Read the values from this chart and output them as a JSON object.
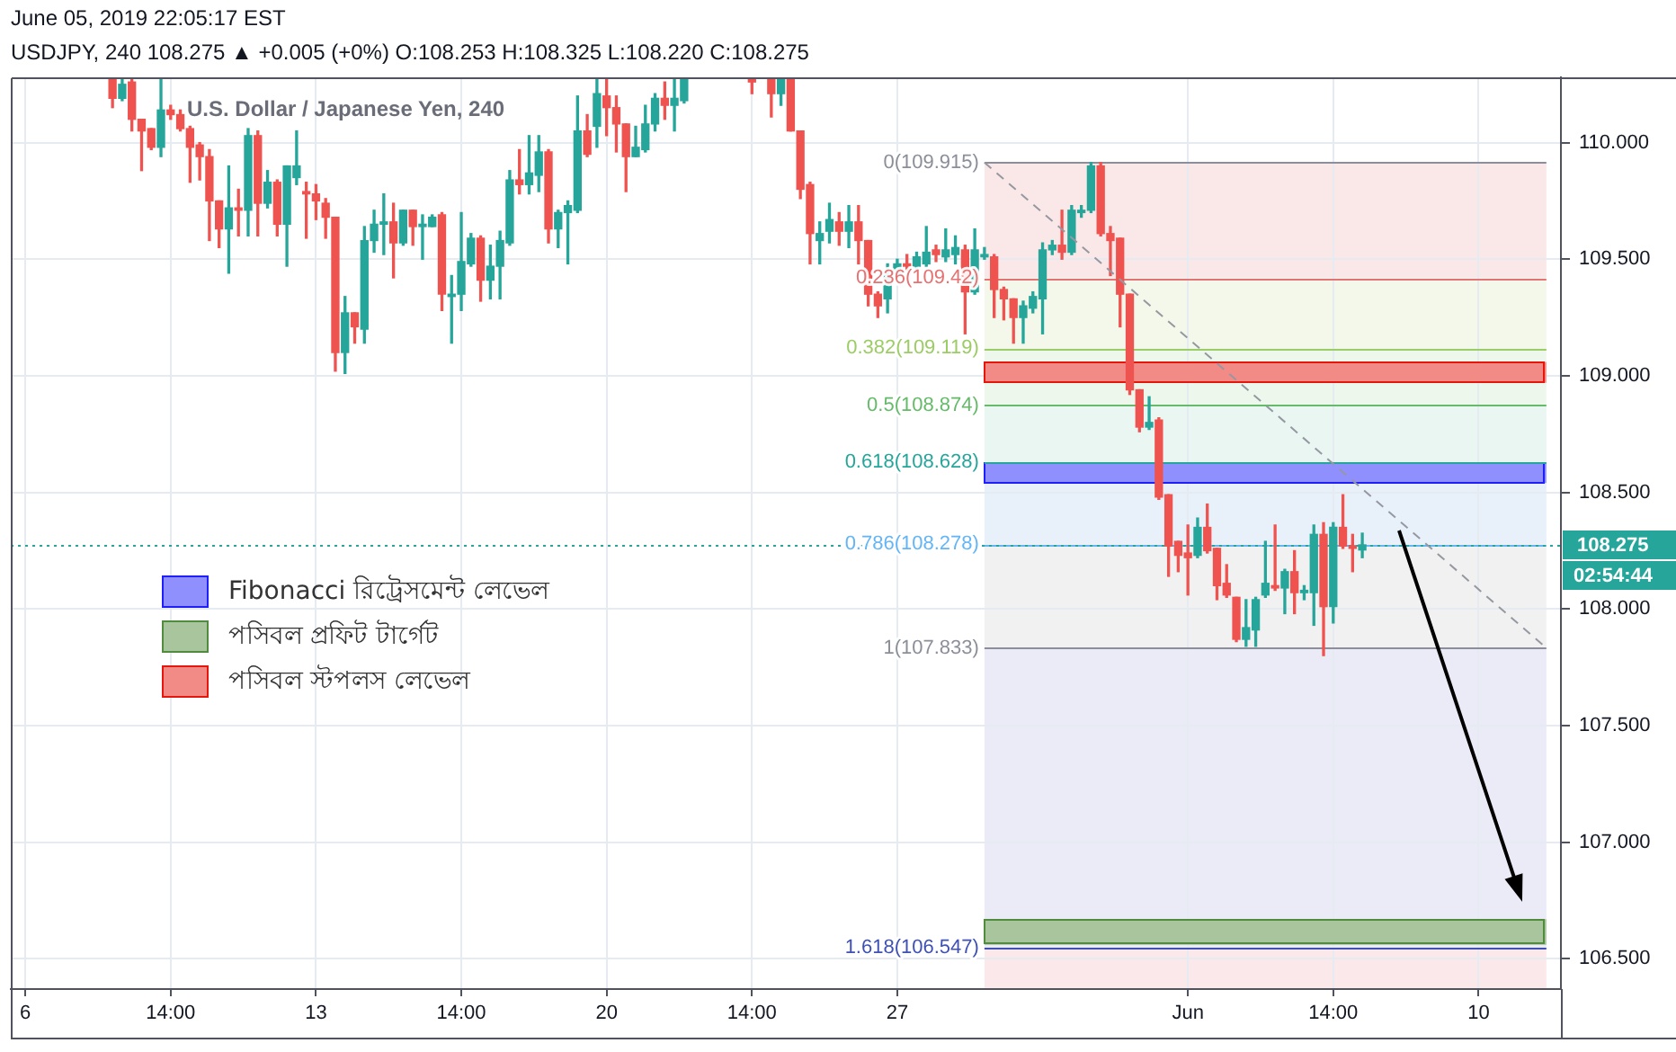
{
  "chart_data": {
    "type": "candlestick",
    "title": "U.S. Dollar / Japanese Yen, 240",
    "categories": [
      null,
      "6",
      null,
      null,
      null,
      null,
      null,
      null,
      null,
      null,
      null,
      null,
      null,
      null,
      null,
      null,
      "14:00",
      null,
      null,
      null,
      null,
      null,
      null,
      null,
      null,
      null,
      null,
      null,
      null,
      null,
      null,
      "13",
      null,
      null,
      null,
      null,
      null,
      null,
      null,
      null,
      null,
      null,
      null,
      null,
      null,
      null,
      "14:00",
      null,
      null,
      null,
      null,
      null,
      null,
      null,
      null,
      null,
      null,
      null,
      null,
      null,
      null,
      "20",
      null,
      null,
      null,
      null,
      null,
      null,
      null,
      null,
      null,
      null,
      null,
      null,
      null,
      null,
      "14:00",
      null,
      null,
      null,
      null,
      null,
      null,
      null,
      null,
      null,
      null,
      null,
      null,
      null,
      null,
      "27",
      null,
      null,
      null,
      null,
      null,
      null,
      null,
      null,
      null,
      null,
      null,
      null,
      null,
      null,
      null,
      null,
      null,
      null,
      null,
      null,
      null,
      null,
      null,
      null,
      null,
      null,
      null,
      null,
      null,
      "Jun",
      null,
      null,
      null,
      null,
      null,
      null,
      null,
      null,
      null,
      null,
      null,
      null,
      null,
      null,
      "14:00",
      null,
      null,
      null,
      null,
      null,
      null,
      null,
      null,
      null,
      null,
      null,
      null,
      null,
      null,
      "10",
      null,
      null,
      null,
      null,
      null,
      null,
      null,
      null
    ],
    "ohlc": [
      null,
      null,
      null,
      null,
      null,
      null,
      null,
      null,
      null,
      null,
      [
        110.27,
        110.27,
        110.15,
        110.19
      ],
      [
        110.19,
        110.27,
        110.18,
        110.25
      ],
      [
        110.26,
        110.27,
        110.05,
        110.1
      ],
      [
        110.1,
        110.1,
        109.88,
        110.05
      ],
      [
        110.06,
        110.06,
        109.97,
        109.98
      ],
      [
        109.98,
        110.27,
        109.94,
        110.14
      ],
      [
        110.14,
        110.16,
        110.1,
        110.12
      ],
      [
        110.12,
        110.14,
        110.05,
        110.06
      ],
      [
        110.06,
        110.07,
        109.83,
        109.98
      ],
      [
        109.99,
        110.0,
        109.84,
        109.94
      ],
      [
        109.94,
        109.97,
        109.58,
        109.75
      ],
      [
        109.75,
        109.75,
        109.55,
        109.63
      ],
      [
        109.63,
        109.9,
        109.44,
        109.72
      ],
      [
        109.72,
        109.8,
        109.6,
        109.71
      ],
      [
        109.71,
        110.06,
        109.6,
        110.03
      ],
      [
        110.03,
        110.05,
        109.6,
        109.74
      ],
      [
        109.74,
        109.88,
        109.72,
        109.83
      ],
      [
        109.83,
        109.84,
        109.6,
        109.65
      ],
      [
        109.65,
        109.9,
        109.47,
        109.9
      ],
      [
        109.85,
        110.05,
        109.82,
        109.9
      ],
      [
        109.79,
        109.83,
        109.59,
        109.78
      ],
      [
        109.78,
        109.82,
        109.67,
        109.75
      ],
      [
        109.74,
        109.76,
        109.59,
        109.68
      ],
      [
        109.68,
        109.68,
        109.02,
        109.1
      ],
      [
        109.1,
        109.34,
        109.01,
        109.27
      ],
      [
        109.27,
        109.27,
        109.14,
        109.21
      ],
      [
        109.2,
        109.64,
        109.14,
        109.58
      ],
      [
        109.58,
        109.71,
        109.53,
        109.65
      ],
      [
        109.65,
        109.78,
        109.52,
        109.66
      ],
      [
        109.66,
        109.74,
        109.42,
        109.57
      ],
      [
        109.57,
        109.71,
        109.56,
        109.71
      ],
      [
        109.71,
        109.71,
        109.56,
        109.64
      ],
      [
        109.64,
        109.69,
        109.5,
        109.65
      ],
      [
        109.64,
        109.69,
        109.64,
        109.68
      ],
      [
        109.69,
        109.7,
        109.28,
        109.35
      ],
      [
        109.34,
        109.43,
        109.14,
        109.35
      ],
      [
        109.35,
        109.7,
        109.28,
        109.49
      ],
      [
        109.48,
        109.61,
        109.47,
        109.59
      ],
      [
        109.59,
        109.6,
        109.32,
        109.41
      ],
      [
        109.41,
        109.56,
        109.33,
        109.47
      ],
      [
        109.47,
        109.62,
        109.33,
        109.58
      ],
      [
        109.57,
        109.88,
        109.56,
        109.84
      ],
      [
        109.84,
        109.97,
        109.78,
        109.82
      ],
      [
        109.82,
        110.03,
        109.78,
        109.87
      ],
      [
        109.86,
        110.03,
        109.79,
        109.96
      ],
      [
        109.96,
        109.97,
        109.57,
        109.63
      ],
      [
        109.63,
        109.71,
        109.55,
        109.7
      ],
      [
        109.7,
        109.75,
        109.48,
        109.73
      ],
      [
        109.71,
        110.2,
        109.7,
        110.05
      ],
      [
        110.05,
        110.12,
        109.94,
        109.95
      ],
      [
        110.07,
        110.27,
        109.98,
        110.21
      ],
      [
        110.2,
        110.27,
        110.03,
        110.15
      ],
      [
        110.15,
        110.2,
        109.96,
        110.08
      ],
      [
        110.08,
        110.08,
        109.79,
        109.94
      ],
      [
        109.94,
        110.07,
        109.94,
        109.98
      ],
      [
        109.97,
        110.16,
        109.96,
        110.08
      ],
      [
        110.08,
        110.21,
        110.05,
        110.19
      ],
      [
        110.19,
        110.26,
        110.1,
        110.16
      ],
      [
        110.16,
        110.27,
        110.05,
        110.19
      ],
      [
        110.18,
        110.27,
        110.17,
        110.27
      ],
      null,
      null,
      null,
      null,
      null,
      null,
      [
        110.27,
        110.27,
        110.21,
        110.26
      ],
      null,
      [
        110.27,
        110.27,
        110.11,
        110.21
      ],
      [
        110.21,
        110.27,
        110.16,
        110.27
      ],
      [
        110.27,
        110.27,
        110.05,
        110.05
      ],
      [
        110.05,
        110.05,
        109.76,
        109.8
      ],
      [
        109.82,
        109.83,
        109.48,
        109.61
      ],
      [
        109.58,
        109.66,
        109.48,
        109.61
      ],
      [
        109.62,
        109.74,
        109.57,
        109.67
      ],
      [
        109.66,
        109.7,
        109.56,
        109.62
      ],
      [
        109.62,
        109.73,
        109.55,
        109.66
      ],
      [
        109.66,
        109.73,
        109.48,
        109.58
      ],
      [
        109.58,
        109.58,
        109.3,
        109.35
      ],
      [
        109.35,
        109.36,
        109.25,
        109.3
      ],
      [
        109.33,
        109.48,
        109.27,
        109.43
      ],
      [
        109.43,
        109.5,
        109.42,
        109.48
      ],
      [
        109.48,
        109.52,
        109.45,
        109.47
      ],
      [
        109.47,
        109.53,
        109.45,
        109.51
      ],
      [
        109.48,
        109.64,
        109.47,
        109.53
      ],
      [
        109.54,
        109.56,
        109.49,
        109.52
      ],
      [
        109.51,
        109.63,
        109.49,
        109.54
      ],
      [
        109.52,
        109.6,
        109.48,
        109.55
      ],
      [
        109.54,
        109.56,
        109.18,
        109.36
      ],
      [
        109.36,
        109.63,
        109.35,
        109.54
      ],
      [
        109.51,
        109.55,
        109.5,
        109.52
      ],
      [
        109.51,
        109.52,
        109.25,
        109.37
      ],
      [
        109.37,
        109.38,
        109.24,
        109.33
      ],
      [
        109.33,
        109.33,
        109.14,
        109.25
      ],
      [
        109.25,
        109.32,
        109.14,
        109.3
      ],
      [
        109.29,
        109.36,
        109.27,
        109.34
      ],
      [
        109.33,
        109.57,
        109.18,
        109.54
      ],
      [
        109.54,
        109.58,
        109.52,
        109.56
      ],
      [
        109.56,
        109.71,
        109.5,
        109.53
      ],
      [
        109.53,
        109.73,
        109.52,
        109.71
      ],
      [
        109.7,
        109.73,
        109.68,
        109.71
      ],
      [
        109.71,
        109.915,
        109.7,
        109.9
      ],
      [
        109.9,
        109.915,
        109.6,
        109.61
      ],
      [
        109.61,
        109.64,
        109.43,
        109.58
      ],
      [
        109.59,
        109.59,
        109.21,
        109.35
      ],
      [
        109.35,
        109.35,
        108.92,
        108.94
      ],
      [
        108.94,
        108.94,
        108.76,
        108.78
      ],
      [
        108.78,
        108.91,
        108.77,
        108.8
      ],
      [
        108.81,
        108.82,
        108.47,
        108.48
      ],
      [
        108.49,
        108.49,
        108.14,
        108.27
      ],
      [
        108.29,
        108.29,
        108.16,
        108.23
      ],
      [
        108.24,
        108.36,
        108.06,
        108.22
      ],
      [
        108.23,
        108.39,
        108.22,
        108.35
      ],
      [
        108.35,
        108.45,
        108.24,
        108.25
      ],
      [
        108.26,
        108.26,
        108.04,
        108.1
      ],
      [
        108.11,
        108.19,
        108.05,
        108.06
      ],
      [
        108.05,
        108.05,
        107.86,
        107.87
      ],
      [
        107.87,
        108.04,
        107.84,
        107.92
      ],
      [
        107.91,
        108.05,
        107.84,
        108.04
      ],
      [
        108.06,
        108.29,
        108.05,
        108.11
      ],
      [
        108.1,
        108.36,
        108.08,
        108.09
      ],
      [
        108.09,
        108.17,
        107.98,
        108.16
      ],
      [
        108.16,
        108.25,
        107.98,
        108.07
      ],
      [
        108.07,
        108.1,
        108.04,
        108.08
      ],
      [
        108.07,
        108.36,
        107.93,
        108.32
      ],
      [
        108.32,
        108.37,
        107.8,
        108.01
      ],
      [
        108.01,
        108.37,
        107.94,
        108.35
      ],
      [
        108.35,
        108.49,
        108.26,
        108.27
      ],
      [
        108.27,
        108.32,
        108.16,
        108.26
      ],
      [
        108.253,
        108.325,
        108.22,
        108.275
      ],
      null,
      null,
      null,
      null,
      null,
      null,
      null,
      null,
      null,
      null,
      null,
      null,
      null,
      null,
      null,
      null,
      null,
      null,
      null,
      null
    ],
    "colors": [
      null,
      null,
      null,
      null,
      null,
      null,
      null,
      null,
      null,
      null,
      "#ef5350",
      "#26a69a",
      "#ef5350",
      "#ef5350",
      "#ef5350",
      "#26a69a",
      "#ef5350",
      "#ef5350",
      "#ef5350",
      "#ef5350",
      "#ef5350",
      "#ef5350",
      "#26a69a",
      "#ef5350",
      "#26a69a",
      "#ef5350",
      "#26a69a",
      "#ef5350",
      "#26a69a",
      "#26a69a",
      "#ef5350",
      "#ef5350",
      "#ef5350",
      "#ef5350",
      "#26a69a",
      "#ef5350",
      "#26a69a",
      "#26a69a",
      "#26a69a",
      "#ef5350",
      "#26a69a",
      "#ef5350",
      "#26a69a",
      "#26a69a",
      "#ef5350",
      "#26a69a",
      "#26a69a",
      "#26a69a",
      "#ef5350",
      "#26a69a",
      "#26a69a",
      "#26a69a",
      "#ef5350",
      "#26a69a",
      "#26a69a",
      "#ef5350",
      "#26a69a",
      "#26a69a",
      "#26a69a",
      "#ef5350",
      "#26a69a",
      "#ef5350",
      "#ef5350",
      "#ef5350",
      "#26a69a",
      "#26a69a",
      "#26a69a",
      "#ef5350",
      "#26a69a",
      "#26a69a",
      null,
      null,
      null,
      null,
      null,
      null,
      "#ef5350",
      null,
      "#ef5350",
      "#26a69a",
      "#ef5350",
      "#ef5350",
      "#ef5350",
      "#26a69a",
      "#26a69a",
      "#ef5350",
      "#26a69a",
      "#ef5350",
      "#ef5350",
      "#ef5350",
      "#26a69a",
      "#26a69a",
      "#ef5350",
      "#26a69a",
      "#26a69a",
      "#ef5350",
      "#26a69a",
      "#26a69a",
      "#ef5350",
      "#26a69a",
      "#26a69a",
      "#ef5350",
      "#ef5350",
      "#ef5350",
      "#26a69a",
      "#26a69a",
      "#26a69a",
      "#26a69a",
      "#ef5350",
      "#26a69a",
      "#26a69a",
      "#26a69a",
      "#ef5350",
      "#ef5350",
      "#ef5350",
      "#ef5350",
      "#ef5350",
      "#26a69a",
      "#ef5350",
      "#ef5350",
      "#ef5350",
      "#ef5350",
      "#26a69a",
      "#ef5350",
      "#ef5350",
      "#ef5350",
      "#ef5350",
      "#26a69a",
      "#26a69a",
      "#26a69a",
      "#ef5350",
      "#26a69a",
      "#ef5350",
      "#26a69a",
      "#26a69a",
      "#ef5350",
      "#26a69a",
      "#ef5350",
      "#ef5350",
      "#26a69a",
      null,
      null,
      null,
      null,
      null,
      null,
      null,
      null,
      null,
      null,
      null,
      null,
      null,
      null,
      null,
      null,
      null,
      null,
      null,
      null
    ],
    "series": [
      {
        "type": "line",
        "color": "#9598a1",
        "line_style": "dashed",
        "values": [
          null,
          null,
          null,
          null,
          null,
          null,
          null,
          null,
          null,
          null,
          null,
          null,
          null,
          null,
          null,
          null,
          null,
          null,
          null,
          null,
          null,
          null,
          null,
          null,
          null,
          null,
          null,
          null,
          null,
          null,
          null,
          null,
          null,
          null,
          null,
          null,
          null,
          null,
          null,
          null,
          null,
          null,
          null,
          null,
          null,
          null,
          null,
          null,
          null,
          null,
          null,
          null,
          null,
          null,
          null,
          null,
          null,
          null,
          null,
          null,
          null,
          null,
          null,
          null,
          null,
          null,
          null,
          null,
          null,
          null,
          null,
          null,
          null,
          null,
          null,
          null,
          null,
          null,
          null,
          null,
          null,
          null,
          null,
          null,
          null,
          null,
          null,
          null,
          null,
          null,
          null,
          null,
          null,
          null,
          null,
          null,
          null,
          null,
          null,
          null,
          109.915,
          null,
          null,
          null,
          null,
          null,
          null,
          null,
          null,
          null,
          null,
          null,
          null,
          null,
          null,
          null,
          null,
          null,
          null,
          null,
          null,
          null,
          null,
          null,
          null,
          null,
          null,
          null,
          null,
          null,
          null,
          null,
          null,
          null,
          null,
          null,
          null,
          null,
          null,
          null,
          null,
          null,
          null,
          null,
          null,
          null,
          null,
          null,
          null,
          null,
          null,
          null,
          null,
          null,
          null,
          null,
          null,
          null,
          107.833,
          null
        ]
      }
    ],
    "ylim": [
      106.37,
      110.28
    ],
    "yticks": [
      {
        "value": 106.5,
        "label": "106.500"
      },
      {
        "value": 107,
        "label": "107.000"
      },
      {
        "value": 107.5,
        "label": "107.500"
      },
      {
        "value": 108,
        "label": "108.000"
      },
      {
        "value": 108.5,
        "label": "108.500"
      },
      {
        "value": 109,
        "label": "109.000"
      },
      {
        "value": 109.5,
        "label": "109.500"
      },
      {
        "value": 110,
        "label": "110.000"
      }
    ],
    "grid": true,
    "legend": "left",
    "ref_lines": [
      {
        "axis": "y",
        "value": 109.915,
        "label": "0(109.915)",
        "color": "#8c8f99"
      },
      {
        "axis": "y",
        "value": 109.42,
        "label": "0.236(109.42)",
        "color": "#e57373"
      },
      {
        "axis": "y",
        "value": 109.119,
        "label": "0.382(109.119)",
        "color": "#9ccc65"
      },
      {
        "axis": "y",
        "value": 108.874,
        "label": "0.5(108.874)",
        "color": "#66bb6a"
      },
      {
        "axis": "y",
        "value": 108.628,
        "label": "0.618(108.628)",
        "color": "#26a69a"
      },
      {
        "axis": "y",
        "value": 108.278,
        "label": "0.786(108.278)",
        "color": "#64b5f6"
      },
      {
        "axis": "y",
        "value": 107.833,
        "label": "1(107.833)",
        "color": "#8c8f99"
      },
      {
        "axis": "y",
        "value": 106.547,
        "label": "1.618(106.547)",
        "color": "#3f51b5"
      },
      {
        "axis": "y",
        "value": 108.275,
        "label": "108.275",
        "color": "#26a69a",
        "line_style": "dotted"
      }
    ],
    "bands": [
      {
        "axis": "y",
        "from": 109.42,
        "to": 109.915,
        "color": "#fae8e8"
      },
      {
        "axis": "y",
        "from": 109.119,
        "to": 109.42,
        "color": "#f3f8ea"
      },
      {
        "axis": "y",
        "from": 108.874,
        "to": 109.119,
        "color": "#edf7ec"
      },
      {
        "axis": "y",
        "from": 108.628,
        "to": 108.874,
        "color": "#e9f6f2"
      },
      {
        "axis": "y",
        "from": 108.278,
        "to": 108.628,
        "color": "#e8f1fa"
      },
      {
        "axis": "y",
        "from": 107.833,
        "to": 108.278,
        "color": "#f1f1f1"
      },
      {
        "axis": "y",
        "from": 106.547,
        "to": 107.833,
        "color": "#ebebf8"
      },
      {
        "axis": "y",
        "from": 106.37,
        "to": 106.547,
        "color": "#fbe8ea"
      },
      {
        "axis": "y",
        "from": 108.54,
        "to": 108.63,
        "label": "Fibonacci রিট্রেসমেন্ট লেভেল",
        "color": "#8f8ffd"
      },
      {
        "axis": "y",
        "from": 106.56,
        "to": 106.67,
        "label": "পসিবল প্রফিট টার্গেট",
        "color": "#a8c59e"
      },
      {
        "axis": "y",
        "from": 108.97,
        "to": 109.06,
        "label": "পসিবল স্টপলস লেভেল",
        "color": "#f28b86"
      }
    ],
    "annotations": [
      "June 05, 2019 22:05:17 EST",
      "USDJPY, 240 108.275 ▲ +0.005 (+0%) O:108.253 H:108.325 L:108.220 C:108.275",
      "02:54:44"
    ]
  }
}
